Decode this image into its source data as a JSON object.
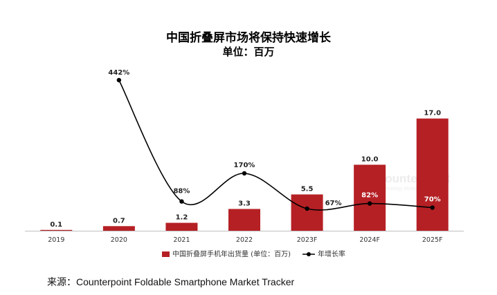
{
  "chart_data": {
    "type": "bar",
    "title": "中国折叠屏市场将保持快速增长",
    "subtitle": "单位：百万",
    "categories": [
      "2019",
      "2020",
      "2021",
      "2022",
      "2023F",
      "2024F",
      "2025F"
    ],
    "series": [
      {
        "name": "中国折叠屏手机年出货量 (单位：百万)",
        "type": "bar",
        "values": [
          0.1,
          0.7,
          1.2,
          3.3,
          5.5,
          10.0,
          17.0
        ],
        "labels": [
          "0.1",
          "0.7",
          "1.2",
          "3.3",
          "5.5",
          "10.0",
          "17.0"
        ],
        "color": "#b52025"
      },
      {
        "name": "年增长率",
        "type": "line",
        "values": [
          null,
          442,
          88,
          170,
          67,
          82,
          70
        ],
        "labels": [
          "",
          "442%",
          "88%",
          "170%",
          "67%",
          "82%",
          "70%"
        ],
        "color": "#000000"
      }
    ],
    "ylim": [
      0,
      18
    ],
    "growth_ylim": [
      0,
      500
    ],
    "legend_position": "bottom",
    "grid": false
  },
  "watermark": {
    "brand": "Counterpoint",
    "tagline": "Technology Market Research"
  },
  "source": "来源：Counterpoint Foldable Smartphone Market Tracker"
}
